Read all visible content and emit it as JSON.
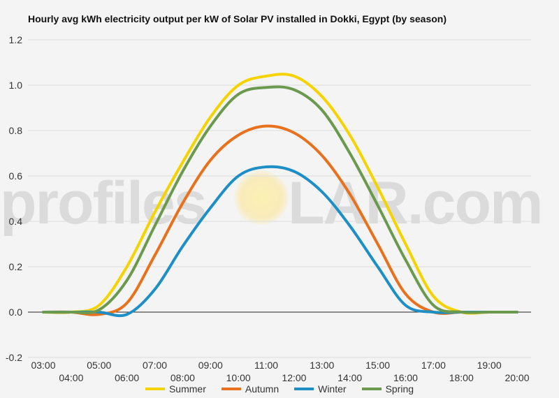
{
  "chart_data": {
    "type": "line",
    "title": "Hourly avg kWh electricity output per kW of Solar PV installed in Dokki, Egypt (by season)",
    "xlabel": "",
    "ylabel": "",
    "ylim": [
      -0.2,
      1.2
    ],
    "yticks": [
      "1.2",
      "1.0",
      "0.8",
      "0.6",
      "0.4",
      "0.2",
      "0.0",
      "-0.2"
    ],
    "ytick_values": [
      1.2,
      1.0,
      0.8,
      0.6,
      0.4,
      0.2,
      0.0,
      -0.2
    ],
    "x": [
      "03:00",
      "04:00",
      "05:00",
      "06:00",
      "07:00",
      "08:00",
      "09:00",
      "10:00",
      "11:00",
      "12:00",
      "13:00",
      "14:00",
      "15:00",
      "16:00",
      "17:00",
      "18:00",
      "19:00",
      "20:00"
    ],
    "grid": true,
    "legend_position": "bottom",
    "series": [
      {
        "name": "Summer",
        "color": "#f5d300",
        "values": [
          0,
          0,
          0.03,
          0.2,
          0.44,
          0.66,
          0.86,
          1.0,
          1.04,
          1.04,
          0.95,
          0.78,
          0.55,
          0.3,
          0.07,
          0,
          0,
          0
        ]
      },
      {
        "name": "Autumn",
        "color": "#e8711e",
        "values": [
          0,
          0,
          -0.01,
          0.04,
          0.25,
          0.48,
          0.67,
          0.78,
          0.82,
          0.79,
          0.69,
          0.52,
          0.3,
          0.08,
          0,
          0,
          0,
          0
        ]
      },
      {
        "name": "Winter",
        "color": "#1e8fc5",
        "values": [
          0,
          0,
          0,
          -0.01,
          0.1,
          0.29,
          0.46,
          0.6,
          0.64,
          0.62,
          0.53,
          0.38,
          0.2,
          0.03,
          0,
          0,
          0,
          0
        ]
      },
      {
        "name": "Spring",
        "color": "#6b9a4f",
        "values": [
          0,
          0,
          0.01,
          0.14,
          0.38,
          0.62,
          0.82,
          0.96,
          0.99,
          0.98,
          0.89,
          0.7,
          0.47,
          0.23,
          0.03,
          0,
          0,
          0
        ]
      }
    ]
  },
  "watermark": {
    "pre": "profiles",
    "post": "LAR.com"
  }
}
